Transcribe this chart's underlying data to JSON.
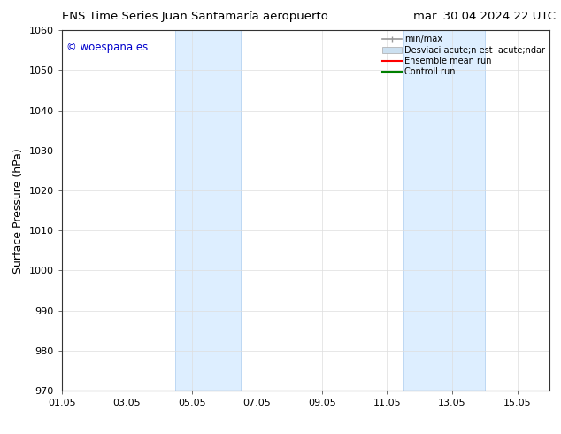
{
  "title_left": "ENS Time Series Juan Santamaría aeropuerto",
  "title_right": "mar. 30.04.2024 22 UTC",
  "ylabel": "Surface Pressure (hPa)",
  "ylim": [
    970,
    1060
  ],
  "yticks": [
    970,
    980,
    990,
    1000,
    1010,
    1020,
    1030,
    1040,
    1050,
    1060
  ],
  "xlim": [
    0,
    15
  ],
  "xtick_labels": [
    "01.05",
    "03.05",
    "05.05",
    "07.05",
    "09.05",
    "11.05",
    "13.05",
    "15.05"
  ],
  "xtick_positions": [
    0,
    2,
    4,
    6,
    8,
    10,
    12,
    14
  ],
  "shade_regions": [
    {
      "x_start": 3.5,
      "x_end": 5.5,
      "color": "#ddeeff"
    },
    {
      "x_start": 10.5,
      "x_end": 13.0,
      "color": "#ddeeff"
    }
  ],
  "shade_border_color": "#aaccee",
  "legend_labels": [
    "min/max",
    "Desviaci acute;n est  acute;ndar",
    "Ensemble mean run",
    "Controll run"
  ],
  "legend_colors": [
    "#999999",
    "#cce0f0",
    "red",
    "green"
  ],
  "watermark_text": "© woespana.es",
  "watermark_color": "#0000cc",
  "bg_color": "#ffffff",
  "grid_color": "#dddddd",
  "title_fontsize": 9.5,
  "tick_fontsize": 8,
  "ylabel_fontsize": 9
}
